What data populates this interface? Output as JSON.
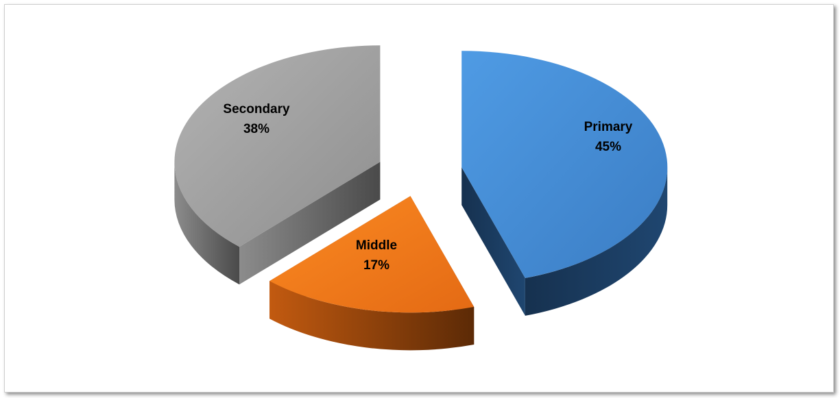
{
  "chart_data": {
    "type": "pie",
    "style": "3d-exploded",
    "slices": [
      {
        "label": "Primary",
        "value": 45,
        "value_label": "45%",
        "color": "#4a90d9"
      },
      {
        "label": "Middle",
        "value": 17,
        "value_label": "17%",
        "color": "#f07820"
      },
      {
        "label": "Secondary",
        "value": 38,
        "value_label": "38%",
        "color": "#a6a6a6"
      }
    ],
    "legend": "none"
  }
}
